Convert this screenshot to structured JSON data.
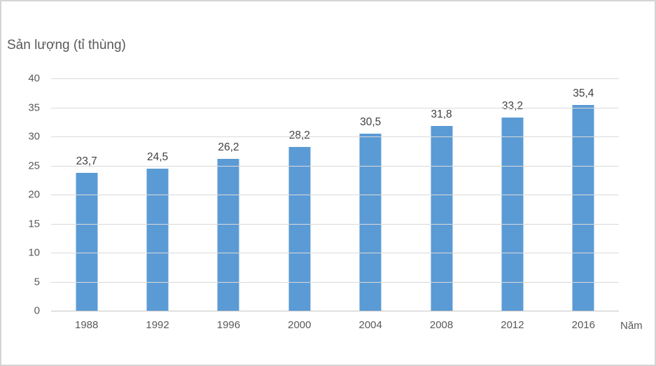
{
  "chart_data": {
    "type": "bar",
    "title": "Sản lượng (tỉ thùng)",
    "xlabel": "Năm",
    "ylabel": "Sản lượng (tỉ thùng)",
    "categories": [
      "1988",
      "1992",
      "1996",
      "2000",
      "2004",
      "2008",
      "2012",
      "2016"
    ],
    "values": [
      23.7,
      24.5,
      26.2,
      28.2,
      30.5,
      31.8,
      33.2,
      35.4
    ],
    "value_labels": [
      "23,7",
      "24,5",
      "26,2",
      "28,2",
      "30,5",
      "31,8",
      "33,2",
      "35,4"
    ],
    "yticks": [
      0,
      5,
      10,
      15,
      20,
      25,
      30,
      35,
      40
    ],
    "ylim": [
      0,
      40
    ],
    "grid": "horizontal",
    "legend": "none",
    "bar_color": "#5b9bd5",
    "gridline_color": "#d9d9d9",
    "axis_label_color": "#595959",
    "data_label_color": "#404040"
  }
}
